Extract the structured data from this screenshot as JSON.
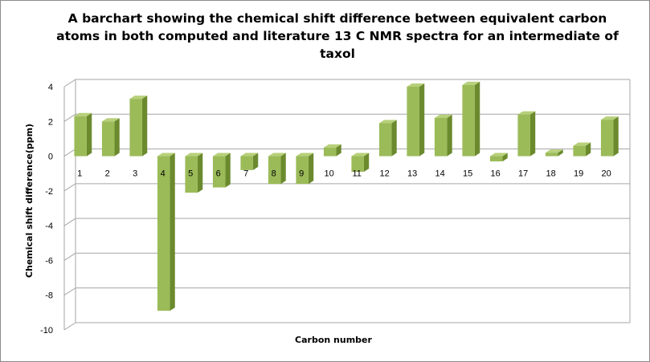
{
  "chart_data": {
    "type": "bar",
    "title": "A barchart showing the chemical shift difference between equivalent carbon\natoms in both computed and literature  13 C NMR spectra  for an intermediate of\ntaxol",
    "xlabel": "Carbon number",
    "ylabel": "Chemical shift difference(ppm)",
    "categories": [
      "1",
      "2",
      "3",
      "4",
      "5",
      "6",
      "7",
      "8",
      "9",
      "10",
      "11",
      "12",
      "13",
      "14",
      "15",
      "16",
      "17",
      "18",
      "19",
      "20"
    ],
    "values": [
      2.3,
      2.0,
      3.3,
      -8.9,
      -2.1,
      -1.8,
      -0.8,
      -1.6,
      -1.6,
      0.5,
      -0.9,
      1.9,
      4.0,
      2.2,
      4.1,
      -0.3,
      2.4,
      0.2,
      0.6,
      2.1
    ],
    "ylim": [
      -10,
      4
    ],
    "yticks": [
      "4",
      "2",
      "0",
      "-2",
      "-4",
      "-6",
      "-8",
      "-10"
    ],
    "grid": true,
    "legend": false,
    "colors": {
      "bar_front": "#9bbb59",
      "bar_side": "#6b8a2e",
      "bar_top": "#b7d07a",
      "grid": "#a6a6a6",
      "wall": "#ffffff"
    }
  }
}
